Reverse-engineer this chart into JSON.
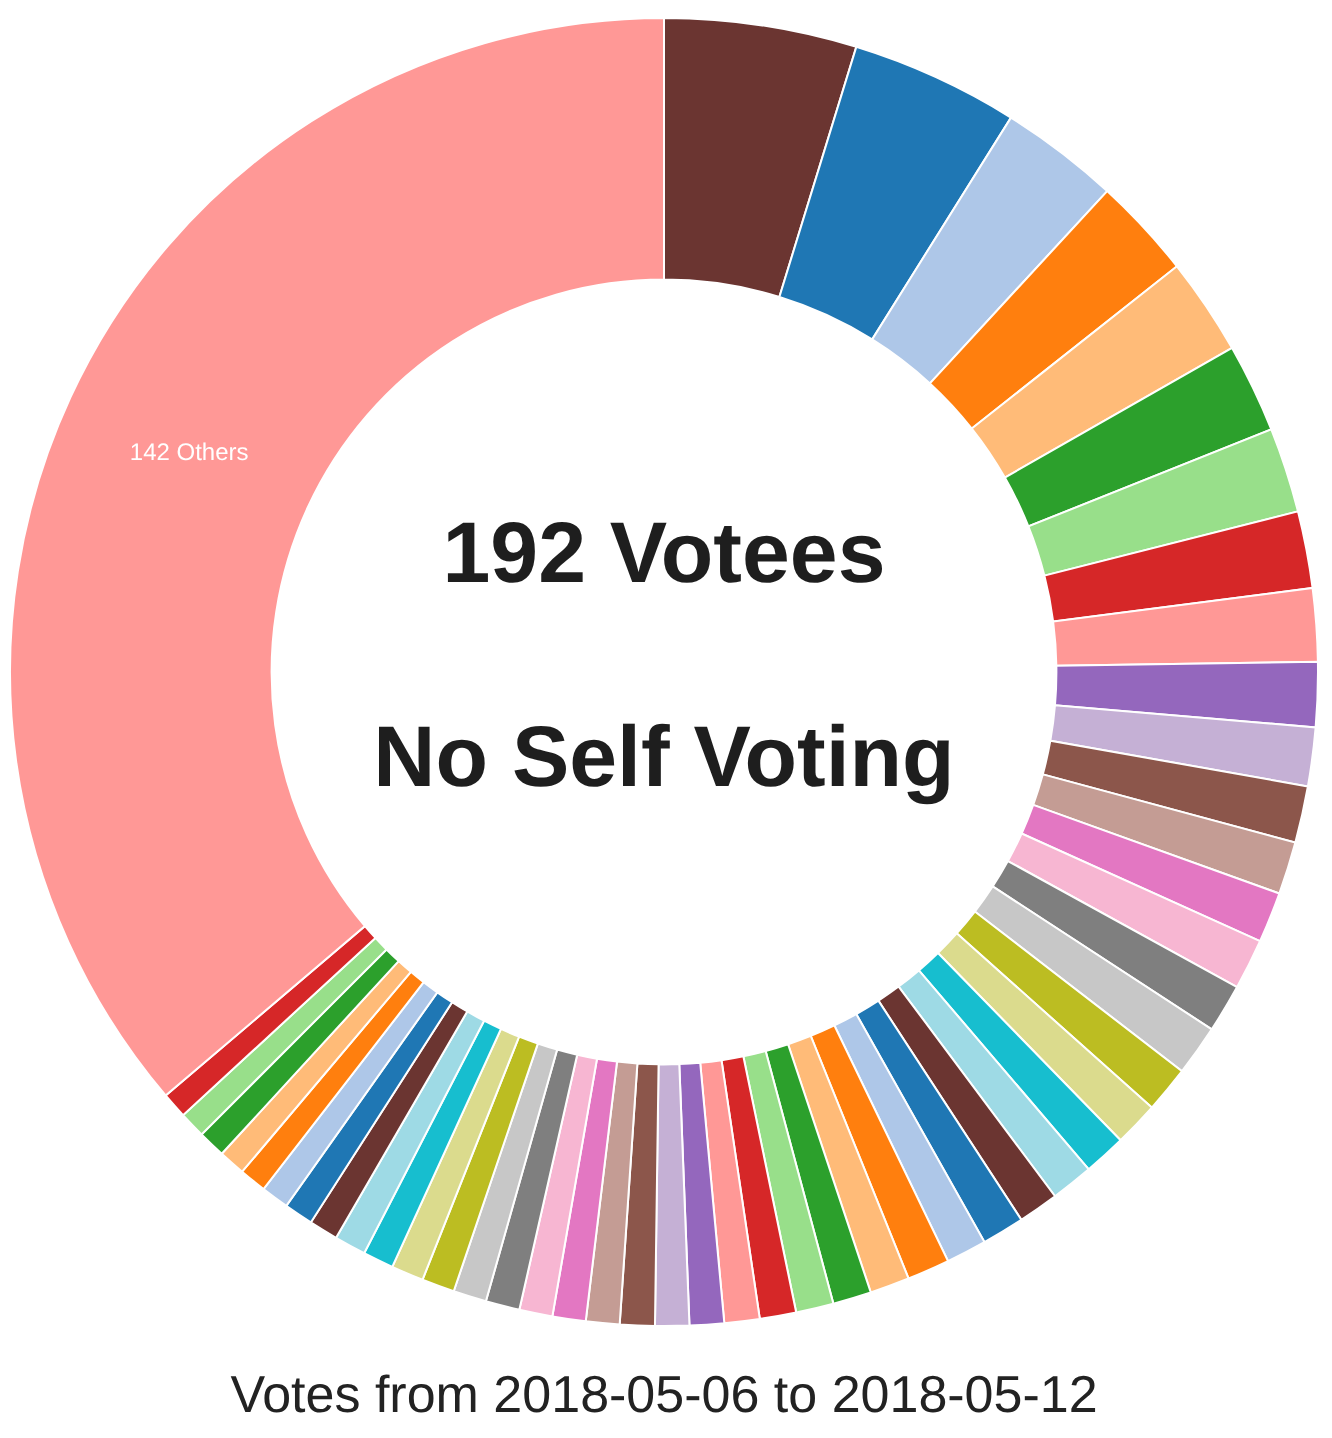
{
  "chart_data": {
    "type": "donut",
    "title": "192 Votees",
    "subtitle": "No Self Voting",
    "annotations": [
      "Votes from 2018-05-06 to 2018-05-12"
    ],
    "categories": [
      null,
      null,
      null,
      null,
      null,
      null,
      null,
      null,
      null,
      null,
      null,
      null,
      null,
      null,
      null,
      null,
      null,
      null,
      null,
      null,
      null,
      null,
      null,
      null,
      null,
      null,
      null,
      null,
      null,
      null,
      null,
      null,
      null,
      null,
      null,
      null,
      null,
      null,
      null,
      null,
      null,
      null,
      null,
      null,
      null,
      null,
      null,
      null,
      null,
      null,
      "142 Others"
    ],
    "values": [
      4.75,
      4.15,
      2.95,
      2.5,
      2.4,
      2.2,
      2.1,
      1.9,
      1.8,
      1.6,
      1.45,
      1.4,
      1.3,
      1.25,
      1.25,
      1.2,
      1.25,
      1.15,
      1.1,
      1.05,
      1.05,
      1.0,
      1.05,
      1.0,
      1.05,
      0.98,
      0.95,
      0.93,
      0.9,
      0.87,
      0.85,
      0.84,
      0.86,
      0.83,
      0.82,
      0.82,
      0.84,
      0.82,
      0.81,
      0.8,
      0.76,
      0.78,
      0.72,
      0.72,
      0.69,
      0.67,
      0.66,
      0.68,
      0.65,
      0.64,
      36.21
    ],
    "colors": [
      "#6b3531",
      "#1f77b4",
      "#aec7e8",
      "#ff7f0e",
      "#ffbb78",
      "#2ca02c",
      "#98df8a",
      "#d62728",
      "#ff9896",
      "#9467bd",
      "#c5b0d5",
      "#8c564b",
      "#c49c94",
      "#e377c2",
      "#f7b6d2",
      "#7f7f7f",
      "#c7c7c7",
      "#bcbd22",
      "#dbdb8d",
      "#17becf",
      "#9edae5",
      "#6b3531",
      "#1f77b4",
      "#aec7e8",
      "#ff7f0e",
      "#ffbb78",
      "#2ca02c",
      "#98df8a",
      "#d62728",
      "#ff9896",
      "#9467bd",
      "#c5b0d5",
      "#8c564b",
      "#c49c94",
      "#e377c2",
      "#f7b6d2",
      "#7f7f7f",
      "#c7c7c7",
      "#bcbd22",
      "#dbdb8d",
      "#17becf",
      "#9edae5",
      "#6b3531",
      "#1f77b4",
      "#aec7e8",
      "#ff7f0e",
      "#ffbb78",
      "#2ca02c",
      "#98df8a",
      "#d62728",
      "#ff9896"
    ]
  }
}
